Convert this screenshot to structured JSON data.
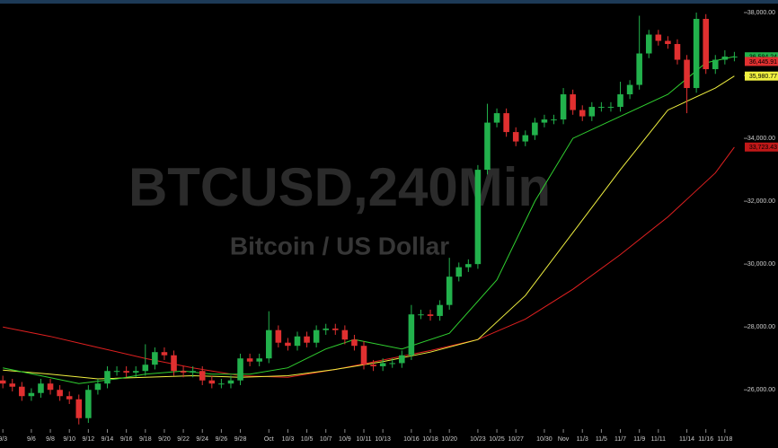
{
  "chart_data": {
    "type": "candlestick",
    "title": "BTCUSD,240Min",
    "subtitle": "Bitcoin / US Dollar",
    "up_color": "#22b14c",
    "down_color": "#e03030",
    "x": [
      0,
      1,
      2,
      3,
      4,
      5,
      6,
      7,
      8,
      9,
      10,
      11,
      12,
      13,
      14,
      15,
      16,
      17,
      18,
      19,
      20,
      21,
      22,
      23,
      24,
      25,
      26,
      27,
      28,
      29,
      30,
      31,
      32,
      33,
      34,
      35,
      36,
      37,
      38,
      39,
      40,
      41,
      42,
      43,
      44,
      45,
      46,
      47,
      48,
      49,
      50,
      51,
      52,
      53,
      54,
      55,
      56,
      57,
      58,
      59,
      60,
      61,
      62,
      63,
      64,
      65,
      66,
      67,
      68,
      69,
      70,
      71,
      72,
      73,
      74,
      75,
      76,
      77
    ],
    "open": [
      26300,
      26200,
      26100,
      25800,
      25900,
      26200,
      26000,
      25800,
      25700,
      25100,
      26000,
      26200,
      26600,
      26600,
      26550,
      26600,
      26800,
      27200,
      27100,
      26600,
      26550,
      26600,
      26300,
      26200,
      26200,
      26300,
      27000,
      26900,
      27000,
      27900,
      27500,
      27400,
      27700,
      27500,
      27900,
      27950,
      27900,
      27600,
      27400,
      26800,
      26750,
      26850,
      26850,
      27100,
      28400,
      28400,
      28350,
      28700,
      29600,
      29900,
      30000,
      33000,
      34500,
      34800,
      34200,
      33900,
      34100,
      34500,
      34600,
      34600,
      35400,
      34900,
      34700,
      35000,
      35000,
      35000,
      35400,
      35700,
      36700,
      37300,
      37100,
      37000,
      36500,
      35600,
      37800,
      36200,
      36500,
      36600
    ],
    "high": [
      26450,
      26350,
      26250,
      26050,
      26350,
      26350,
      26150,
      25950,
      25850,
      26150,
      26350,
      26750,
      26750,
      26750,
      26750,
      27450,
      27350,
      27350,
      27250,
      26750,
      26750,
      26750,
      26450,
      26350,
      26450,
      27150,
      27150,
      27150,
      28500,
      28050,
      27650,
      27850,
      27850,
      28050,
      28100,
      28100,
      28050,
      27750,
      27550,
      26950,
      27000,
      27000,
      27250,
      28700,
      28550,
      28550,
      28850,
      30200,
      30050,
      30150,
      33150,
      35100,
      34950,
      34950,
      34350,
      34250,
      34650,
      34750,
      34750,
      35600,
      35550,
      35050,
      35150,
      35150,
      35150,
      35800,
      35850,
      37900,
      37450,
      37450,
      37250,
      37150,
      36650,
      38000,
      37950,
      36650,
      36800,
      36750
    ],
    "low": [
      26050,
      25950,
      25650,
      25650,
      25750,
      25850,
      25650,
      25550,
      24900,
      24950,
      25850,
      26050,
      26450,
      26400,
      26400,
      26450,
      26650,
      26950,
      26450,
      26400,
      26400,
      26150,
      26050,
      26050,
      26050,
      26150,
      26750,
      26750,
      26850,
      27350,
      27250,
      27250,
      27350,
      27350,
      27750,
      27750,
      27450,
      27250,
      26650,
      26600,
      26600,
      26700,
      26700,
      26950,
      28250,
      28200,
      28200,
      28550,
      29450,
      29750,
      29850,
      32850,
      34350,
      34050,
      33750,
      33750,
      33950,
      34350,
      34450,
      34450,
      34750,
      34550,
      34550,
      34850,
      34850,
      34850,
      35250,
      35550,
      36550,
      36950,
      36850,
      36350,
      34800,
      35450,
      36050,
      36050,
      36350,
      36450
    ],
    "close": [
      26200,
      26100,
      25800,
      25900,
      26200,
      26000,
      25800,
      25700,
      25100,
      26000,
      26200,
      26600,
      26600,
      26550,
      26600,
      26800,
      27200,
      27100,
      26600,
      26550,
      26600,
      26300,
      26200,
      26200,
      26300,
      27000,
      26900,
      27000,
      27900,
      27500,
      27400,
      27700,
      27500,
      27900,
      27950,
      27900,
      27600,
      27400,
      26800,
      26750,
      26850,
      26850,
      27100,
      28400,
      28400,
      28350,
      28700,
      29600,
      29900,
      30000,
      33000,
      34500,
      34800,
      34200,
      33900,
      34100,
      34500,
      34600,
      34600,
      35400,
      34900,
      34700,
      35000,
      35000,
      35000,
      35400,
      35700,
      36700,
      37300,
      37100,
      37000,
      36500,
      35600,
      37800,
      36200,
      36500,
      36600,
      36600
    ],
    "moving_averages": [
      {
        "color": "#e02020",
        "x": [
          0,
          5,
          10,
          15,
          20,
          25,
          30,
          35,
          40,
          45,
          50,
          55,
          60,
          65,
          70,
          75,
          77
        ],
        "values": [
          28000,
          27700,
          27350,
          27000,
          26700,
          26450,
          26400,
          26650,
          26950,
          27250,
          27600,
          28250,
          29200,
          30300,
          31500,
          32900,
          33720
        ]
      },
      {
        "color": "#f0f040",
        "x": [
          0,
          5,
          10,
          15,
          20,
          25,
          30,
          35,
          40,
          45,
          50,
          55,
          60,
          65,
          70,
          75,
          77
        ],
        "values": [
          26630,
          26500,
          26350,
          26400,
          26450,
          26400,
          26450,
          26650,
          26900,
          27200,
          27600,
          29000,
          31000,
          33000,
          34900,
          35600,
          35980
        ]
      },
      {
        "color": "#30d030",
        "x": [
          0,
          4,
          8,
          12,
          15,
          19,
          22,
          26,
          30,
          34,
          37,
          42,
          47,
          52,
          56,
          60,
          65,
          70,
          74,
          77
        ],
        "values": [
          26700,
          26450,
          26200,
          26350,
          26500,
          26600,
          26500,
          26500,
          26700,
          27300,
          27600,
          27300,
          27800,
          29500,
          32000,
          34000,
          34700,
          35400,
          36400,
          36600
        ]
      }
    ],
    "price_labels": [
      {
        "value": 36594.24,
        "label": "36,594.24",
        "color": "#22b14c"
      },
      {
        "value": 36445.91,
        "label": "36,445.91",
        "color": "#e03030"
      },
      {
        "value": 35980.77,
        "label": "35,980.77",
        "color": "#f0f040"
      },
      {
        "value": 33723.43,
        "label": "33,723.43",
        "color": "#c01818"
      }
    ],
    "xlim": [
      -0.3,
      78
    ],
    "ylim": [
      24750,
      38400
    ],
    "xticks": [
      {
        "value": 0,
        "label": "9/3"
      },
      {
        "value": 3,
        "label": "9/6"
      },
      {
        "value": 5,
        "label": "9/8"
      },
      {
        "value": 7,
        "label": "9/10"
      },
      {
        "value": 9,
        "label": "9/12"
      },
      {
        "value": 11,
        "label": "9/14"
      },
      {
        "value": 13,
        "label": "9/16"
      },
      {
        "value": 15,
        "label": "9/18"
      },
      {
        "value": 17,
        "label": "9/20"
      },
      {
        "value": 19,
        "label": "9/22"
      },
      {
        "value": 21,
        "label": "9/24"
      },
      {
        "value": 23,
        "label": "9/26"
      },
      {
        "value": 25,
        "label": "9/28"
      },
      {
        "value": 28,
        "label": "Oct"
      },
      {
        "value": 30,
        "label": "10/3"
      },
      {
        "value": 32,
        "label": "10/5"
      },
      {
        "value": 34,
        "label": "10/7"
      },
      {
        "value": 36,
        "label": "10/9"
      },
      {
        "value": 38,
        "label": "10/11"
      },
      {
        "value": 40,
        "label": "10/13"
      },
      {
        "value": 43,
        "label": "10/16"
      },
      {
        "value": 45,
        "label": "10/18"
      },
      {
        "value": 47,
        "label": "10/20"
      },
      {
        "value": 50,
        "label": "10/23"
      },
      {
        "value": 52,
        "label": "10/25"
      },
      {
        "value": 54,
        "label": "10/27"
      },
      {
        "value": 57,
        "label": "10/30"
      },
      {
        "value": 59,
        "label": "Nov"
      },
      {
        "value": 61,
        "label": "11/3"
      },
      {
        "value": 63,
        "label": "11/5"
      },
      {
        "value": 65,
        "label": "11/7"
      },
      {
        "value": 67,
        "label": "11/9"
      },
      {
        "value": 69,
        "label": "11/11"
      },
      {
        "value": 72,
        "label": "11/14"
      },
      {
        "value": 74,
        "label": "11/16"
      },
      {
        "value": 76,
        "label": "11/18"
      }
    ],
    "yticks": [
      {
        "value": 26000,
        "label": "26,000.00"
      },
      {
        "value": 28000,
        "label": "28,000.00"
      },
      {
        "value": 30000,
        "label": "30,000.00"
      },
      {
        "value": 32000,
        "label": "32,000.00"
      },
      {
        "value": 34000,
        "label": "34,000.00"
      },
      {
        "value": 36000,
        "label": "36,000.00"
      },
      {
        "value": 38000,
        "label": "38,000.00"
      }
    ]
  }
}
